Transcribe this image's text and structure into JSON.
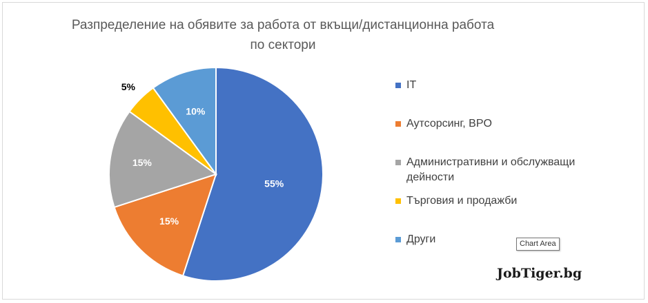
{
  "chart_data": {
    "type": "pie",
    "title": "Разпределение на обявите за работа от вкъщи/дистанционна работа по сектори",
    "slices": [
      {
        "label": "IT",
        "value": 55,
        "color": "#4472c4",
        "data_label": "55%"
      },
      {
        "label": "Аутсорсинг, BPO",
        "value": 15,
        "color": "#ed7d31",
        "data_label": "15%"
      },
      {
        "label": "Административни и обслужващи дейности",
        "value": 15,
        "color": "#a5a5a5",
        "data_label": "15%"
      },
      {
        "label": "Търговия и продажби",
        "value": 5,
        "color": "#ffc000",
        "data_label": "5%"
      },
      {
        "label": "Други",
        "value": 10,
        "color": "#5b9bd5",
        "data_label": "10%"
      }
    ],
    "legend_position": "right"
  },
  "tooltip": "Chart Area",
  "watermark": "JobTiger.bg"
}
